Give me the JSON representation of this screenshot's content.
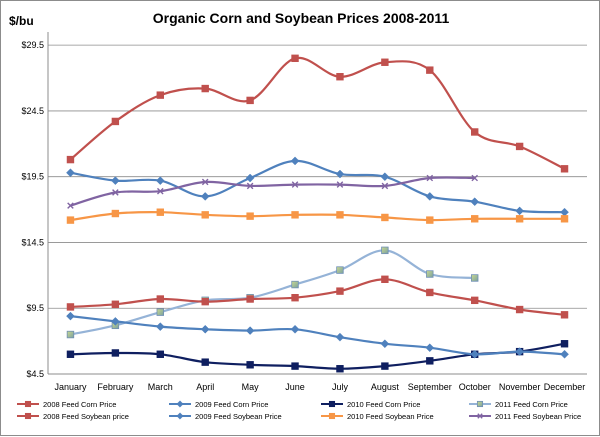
{
  "chart_data": {
    "type": "line",
    "title": "Organic Corn and Soybean Prices 2008-2011",
    "ylabel": "$/bu",
    "xlabel": "",
    "ylim": [
      4.5,
      30.5
    ],
    "yticks": [
      "$4.5",
      "$9.5",
      "$14.5",
      "$19.5",
      "$24.5",
      "$29.5"
    ],
    "ytick_values": [
      4.5,
      9.5,
      14.5,
      19.5,
      24.5,
      29.5
    ],
    "categories": [
      "January",
      "February",
      "March",
      "April",
      "May",
      "June",
      "July",
      "August",
      "September",
      "October",
      "November",
      "December"
    ],
    "grid": "horizontal",
    "legend_position": "bottom",
    "series": [
      {
        "name": "2008 Feed Corn Price",
        "color": "#c0504d",
        "marker": "square",
        "values": [
          20.8,
          23.7,
          25.7,
          26.2,
          25.3,
          28.5,
          27.1,
          28.2,
          27.6,
          22.9,
          21.8,
          20.1
        ]
      },
      {
        "name": "2009 Feed Corn Price",
        "color": "#4f81bd",
        "marker": "diamond",
        "values": [
          19.8,
          19.2,
          19.2,
          18.0,
          19.4,
          20.7,
          19.7,
          19.5,
          18.0,
          17.6,
          16.9,
          16.8
        ]
      },
      {
        "name": "2010 Feed Corn Price",
        "color": "#0f1f60",
        "marker": "square",
        "values": [
          6.0,
          6.1,
          6.0,
          5.4,
          5.2,
          5.1,
          4.9,
          5.1,
          5.5,
          6.0,
          6.2,
          6.8
        ]
      },
      {
        "name": "2011 Feed Corn Price",
        "color": "#95b3d7",
        "marker": "square",
        "values": [
          7.5,
          8.2,
          9.2,
          10.1,
          10.3,
          11.3,
          12.4,
          13.9,
          12.1,
          11.8,
          null,
          null
        ]
      },
      {
        "name": "2008 Feed Soybean price",
        "color": "#c0504d",
        "marker": "square",
        "values": [
          9.6,
          9.8,
          10.2,
          10.0,
          10.2,
          10.3,
          10.8,
          11.7,
          10.7,
          10.1,
          9.4,
          9.0
        ]
      },
      {
        "name": "2009 Feed Soybean Price",
        "color": "#4f81bd",
        "marker": "diamond",
        "values": [
          8.9,
          8.5,
          8.1,
          7.9,
          7.8,
          7.9,
          7.3,
          6.8,
          6.5,
          6.0,
          6.2,
          6.0
        ]
      },
      {
        "name": "2010 Feed Soybean Price",
        "color": "#f79646",
        "marker": "square",
        "values": [
          16.2,
          16.7,
          16.8,
          16.6,
          16.5,
          16.6,
          16.6,
          16.4,
          16.2,
          16.3,
          16.3,
          16.3
        ]
      },
      {
        "name": "2011 Feed Soybean Price",
        "color": "#8064a2",
        "marker": "cross",
        "values": [
          17.3,
          18.3,
          18.4,
          19.1,
          18.8,
          18.9,
          18.9,
          18.8,
          19.4,
          19.4,
          null,
          null
        ]
      }
    ]
  }
}
